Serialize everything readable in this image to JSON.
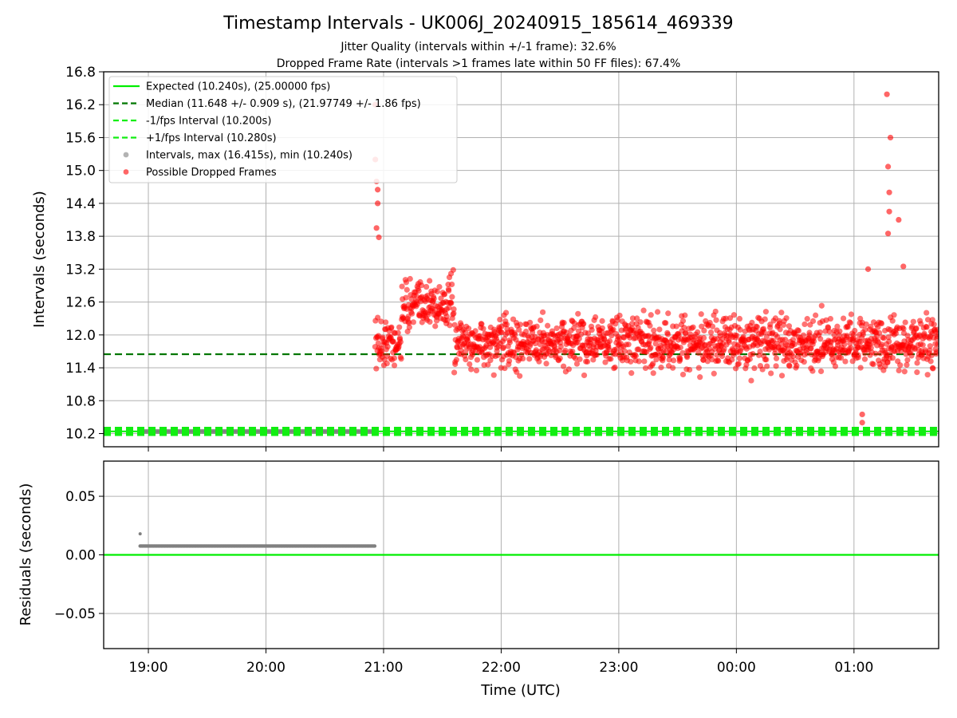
{
  "title": "Timestamp Intervals - UK006J_20240915_185614_469339",
  "subtitle_1": "Jitter Quality (intervals within +/-1 frame): 32.6%",
  "subtitle_2": "Dropped Frame Rate (intervals >1 frames late within 50 FF files): 67.4%",
  "colors": {
    "expected": "#00ee00",
    "median": "#007700",
    "fps_interval": "#11ee11",
    "intervals": "#808080",
    "dropped": "#ff0000",
    "grid": "#b0b0b0"
  },
  "chart_data": [
    {
      "type": "scatter",
      "ylabel": "Intervals (seconds)",
      "ylim": [
        9.96,
        16.8
      ],
      "y_ticks": [
        "16.8",
        "16.2",
        "15.6",
        "15.0",
        "14.4",
        "13.8",
        "13.2",
        "12.6",
        "12.0",
        "11.4",
        "10.8",
        "10.2"
      ],
      "y_tick_values": [
        16.8,
        16.2,
        15.6,
        15.0,
        14.4,
        13.8,
        13.2,
        12.6,
        12.0,
        11.4,
        10.8,
        10.2
      ],
      "xlim_hours": [
        18.62,
        25.72
      ],
      "x_tick_hours": [
        19,
        20,
        21,
        22,
        23,
        24,
        25
      ],
      "grid": true,
      "legend_position": "top-left",
      "legend": [
        "Expected (10.240s), (25.00000 fps)",
        "Median (11.648 +/- 0.909 s), (21.97749 +/- 1.86 fps)",
        "-1/fps Interval (10.200s)",
        "+1/fps Interval (10.280s)",
        "Intervals, max (16.415s), min (10.240s)",
        "Possible Dropped Frames"
      ],
      "reference_lines": {
        "expected": 10.24,
        "median": 11.648,
        "minus_one_frame": 10.2,
        "plus_one_frame": 10.28
      },
      "interval_series": {
        "name": "Intervals",
        "start_hour": 18.93,
        "end_hour": 20.93,
        "value": 10.24
      },
      "dropped_series": {
        "name": "Possible Dropped Frames",
        "start_hour": 20.93,
        "end_hour": 25.72,
        "approx_count": 1550,
        "band_center": 11.85,
        "notable_points": [
          {
            "x": 20.93,
            "y": 16.2
          },
          {
            "x": 20.93,
            "y": 15.2
          },
          {
            "x": 20.94,
            "y": 14.8
          },
          {
            "x": 20.95,
            "y": 14.65
          },
          {
            "x": 20.95,
            "y": 14.4
          },
          {
            "x": 20.94,
            "y": 13.95
          },
          {
            "x": 20.96,
            "y": 13.78
          },
          {
            "x": 25.07,
            "y": 10.55
          },
          {
            "x": 25.07,
            "y": 10.4
          },
          {
            "x": 25.28,
            "y": 16.39
          },
          {
            "x": 25.31,
            "y": 15.6
          },
          {
            "x": 25.29,
            "y": 15.07
          },
          {
            "x": 25.3,
            "y": 14.6
          },
          {
            "x": 25.3,
            "y": 14.25
          },
          {
            "x": 25.29,
            "y": 13.85
          },
          {
            "x": 25.38,
            "y": 14.1
          },
          {
            "x": 25.42,
            "y": 13.25
          },
          {
            "x": 25.12,
            "y": 13.2
          }
        ]
      },
      "x_tick_labels": [
        "19:00",
        "20:00",
        "21:00",
        "22:00",
        "23:00",
        "00:00",
        "01:00"
      ]
    },
    {
      "type": "scatter",
      "xlabel": "Time (UTC)",
      "ylabel": "Residuals (seconds)",
      "ylim": [
        -0.08,
        0.08
      ],
      "y_ticks": [
        "0.05",
        "0.00",
        "−0.05"
      ],
      "y_tick_values": [
        0.05,
        0.0,
        -0.05
      ],
      "xlim_hours": [
        18.62,
        25.72
      ],
      "x_tick_hours": [
        19,
        20,
        21,
        22,
        23,
        24,
        25
      ],
      "x_tick_labels": [
        "19:00",
        "20:00",
        "21:00",
        "22:00",
        "23:00",
        "00:00",
        "01:00"
      ],
      "grid": true,
      "zero_line": 0.0,
      "residual_series": {
        "start_hour": 18.93,
        "end_hour": 20.93,
        "value": 0.0075,
        "outlier": {
          "x": 18.93,
          "y": 0.018
        }
      }
    }
  ]
}
